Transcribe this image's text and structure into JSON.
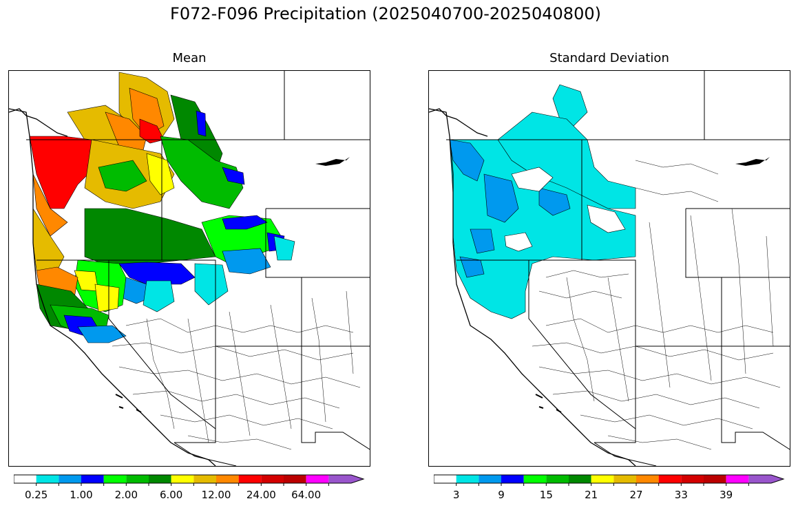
{
  "figure": {
    "title": "F072-F096 Precipitation (2025040700-2025040800)"
  },
  "panels": [
    {
      "title": "Mean",
      "colorbar": {
        "colors": [
          "#ffffff",
          "#00e5e5",
          "#0099ee",
          "#0000ff",
          "#00ff00",
          "#00bb00",
          "#008800",
          "#ffff00",
          "#e5bb00",
          "#ff8800",
          "#ff0000",
          "#d40000",
          "#bb0000",
          "#ff00ff",
          "#9955cc"
        ],
        "tick_labels": [
          "0.25",
          "1.00",
          "2.00",
          "6.00",
          "12.00",
          "24.00",
          "64.00"
        ],
        "extend": "max"
      }
    },
    {
      "title": "Standard Deviation",
      "colorbar": {
        "colors": [
          "#ffffff",
          "#00e5e5",
          "#0099ee",
          "#0000ff",
          "#00ff00",
          "#00bb00",
          "#008800",
          "#ffff00",
          "#e5bb00",
          "#ff8800",
          "#ff0000",
          "#d40000",
          "#bb0000",
          "#ff00ff",
          "#9955cc"
        ],
        "tick_labels": [
          "3",
          "9",
          "15",
          "21",
          "27",
          "33",
          "39"
        ],
        "extend": "max"
      }
    }
  ]
}
